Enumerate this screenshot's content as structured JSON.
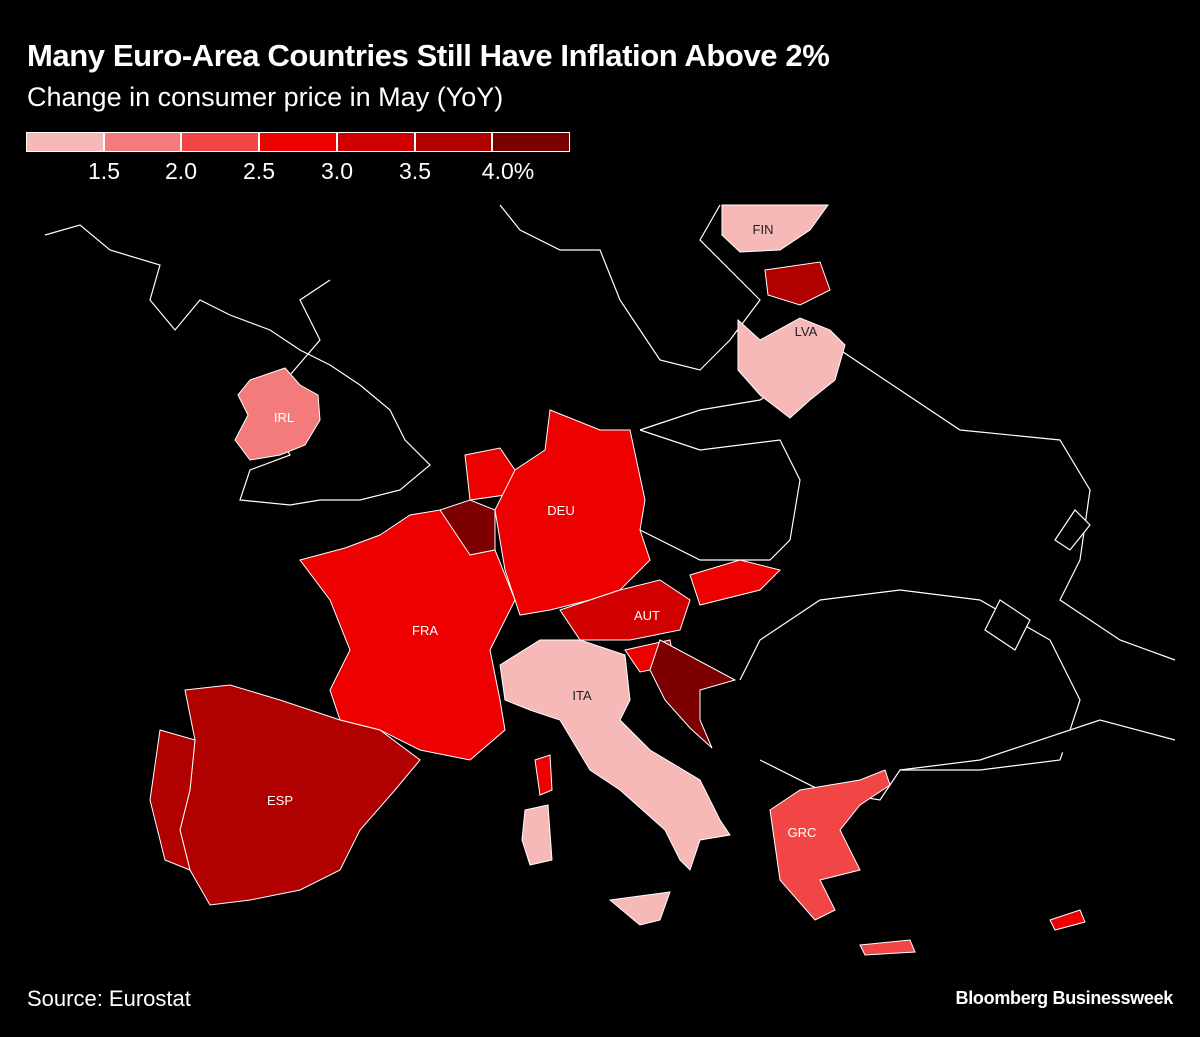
{
  "header": {
    "title": "Many Euro-Area Countries Still Have Inflation Above 2%",
    "subtitle": "Change in consumer price in May (YoY)"
  },
  "legend": {
    "colors": [
      "#f7b8b8",
      "#f47b7b",
      "#f24646",
      "#ee0000",
      "#d10000",
      "#b00000",
      "#7d0000"
    ],
    "ticks": [
      "1.5",
      "2.0",
      "2.5",
      "3.0",
      "3.5",
      "4.0%"
    ]
  },
  "map": {
    "background": "#000000",
    "border_color": "#ffffff",
    "countries": [
      {
        "label": "FIN",
        "bin": 0
      },
      {
        "label": "LVA",
        "bin": 0
      },
      {
        "label": "IRL",
        "bin": 1
      },
      {
        "label": "DEU",
        "bin": 3
      },
      {
        "label": "FRA",
        "bin": 3
      },
      {
        "label": "AUT",
        "bin": 4
      },
      {
        "label": "ITA",
        "bin": 0
      },
      {
        "label": "ESP",
        "bin": 5
      },
      {
        "label": "GRC",
        "bin": 2
      }
    ]
  },
  "footer": {
    "source": "Source: Eurostat",
    "credit": "Bloomberg Businessweek"
  }
}
